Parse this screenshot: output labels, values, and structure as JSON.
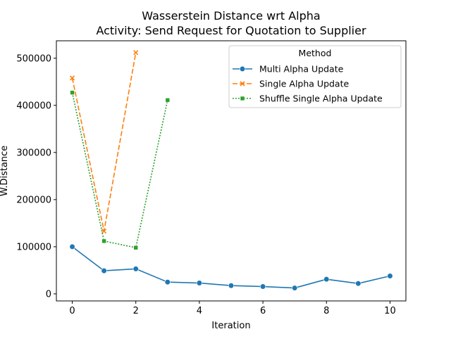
{
  "chart_data": {
    "type": "line",
    "title": "Wasserstein Distance wrt Alpha",
    "subtitle": "Activity: Send Request for Quotation to Supplier",
    "xlabel": "Iteration",
    "ylabel": "W.Distance",
    "xlim": [
      -0.5,
      10.5
    ],
    "ylim": [
      -15000,
      537000
    ],
    "xticks": [
      0,
      2,
      4,
      6,
      8,
      10
    ],
    "xtick_labels": [
      "0",
      "2",
      "4",
      "6",
      "8",
      "10"
    ],
    "yticks": [
      0,
      100000,
      200000,
      300000,
      400000,
      500000
    ],
    "ytick_labels": [
      "0",
      "100000",
      "200000",
      "300000",
      "400000",
      "500000"
    ],
    "grid": false,
    "legend": {
      "title": "Method",
      "placement": "top-right"
    },
    "series": [
      {
        "name": "Multi Alpha Update",
        "color": "#1f77b4",
        "line_style": "solid",
        "marker": "circle",
        "x": [
          0,
          1,
          2,
          3,
          4,
          5,
          6,
          7,
          8,
          9,
          10
        ],
        "values": [
          100000,
          49000,
          53000,
          25000,
          23000,
          17500,
          15500,
          12500,
          31000,
          22000,
          38000
        ]
      },
      {
        "name": "Single Alpha Update",
        "color": "#ff7f0e",
        "line_style": "dashed",
        "marker": "x",
        "x": [
          0,
          1,
          2
        ],
        "values": [
          458000,
          133000,
          512000
        ]
      },
      {
        "name": "Shuffle Single Alpha Update",
        "color": "#2ca02c",
        "line_style": "dotted",
        "marker": "square",
        "x": [
          0,
          1,
          2,
          3
        ],
        "values": [
          427000,
          112000,
          98000,
          411000
        ]
      }
    ]
  }
}
